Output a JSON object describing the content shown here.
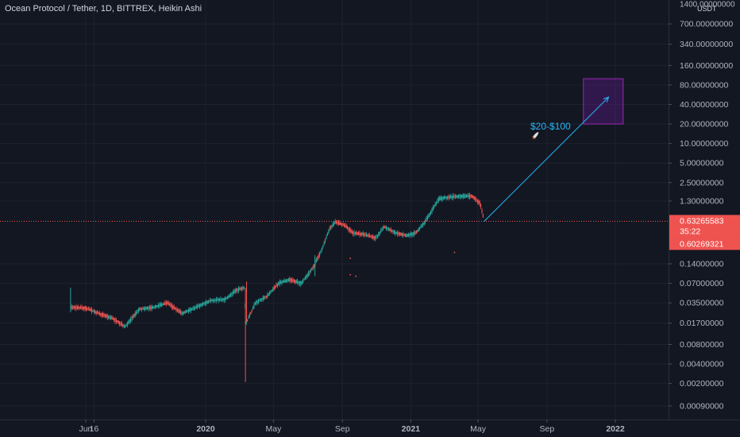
{
  "chart_data": {
    "type": "candlestick",
    "title": "Ocean Protocol / Tether, 1D, BITTREX, Heikin Ashi",
    "y_unit": "USDT",
    "y_scale": "log",
    "y_tick_labels": [
      "1400.00000000",
      "700.00000000",
      "340.00000000",
      "160.00000000",
      "80.00000000",
      "40.00000000",
      "20.00000000",
      "10.00000000",
      "5.00000000",
      "2.50000000",
      "1.30000000",
      "0.14000000",
      "0.07000000",
      "0.03500000",
      "0.01700000",
      "0.00800000",
      "0.00400000",
      "0.00200000",
      "0.00090000"
    ],
    "x_tick_labels": [
      "Jun",
      "16",
      "2020",
      "May",
      "Sep",
      "2021",
      "May",
      "Sep",
      "2022"
    ],
    "last_price": "0.63265583",
    "countdown": "35:22",
    "price_low_label": "0.60269321",
    "annotation": "$20-$100",
    "projection_target_range": [
      20,
      100
    ],
    "price_path": [
      [
        "2019-05-05",
        0.03
      ],
      [
        "2019-06-01",
        0.029
      ],
      [
        "2019-06-20",
        0.025
      ],
      [
        "2019-07-20",
        0.02
      ],
      [
        "2019-08-10",
        0.015
      ],
      [
        "2019-09-05",
        0.028
      ],
      [
        "2019-10-01",
        0.03
      ],
      [
        "2019-10-25",
        0.035
      ],
      [
        "2019-11-20",
        0.024
      ],
      [
        "2019-12-15",
        0.03
      ],
      [
        "2020-01-10",
        0.038
      ],
      [
        "2020-02-05",
        0.04
      ],
      [
        "2020-02-25",
        0.055
      ],
      [
        "2020-03-10",
        0.06
      ],
      [
        "2020-03-13",
        0.017
      ],
      [
        "2020-03-30",
        0.035
      ],
      [
        "2020-04-20",
        0.045
      ],
      [
        "2020-05-10",
        0.07
      ],
      [
        "2020-05-30",
        0.08
      ],
      [
        "2020-06-20",
        0.07
      ],
      [
        "2020-07-10",
        0.12
      ],
      [
        "2020-07-25",
        0.22
      ],
      [
        "2020-08-10",
        0.5
      ],
      [
        "2020-08-20",
        0.62
      ],
      [
        "2020-09-05",
        0.55
      ],
      [
        "2020-09-20",
        0.42
      ],
      [
        "2020-10-10",
        0.4
      ],
      [
        "2020-10-30",
        0.35
      ],
      [
        "2020-11-15",
        0.52
      ],
      [
        "2020-12-05",
        0.42
      ],
      [
        "2020-12-25",
        0.38
      ],
      [
        "2021-01-10",
        0.42
      ],
      [
        "2021-01-25",
        0.6
      ],
      [
        "2021-02-10",
        1.0
      ],
      [
        "2021-02-20",
        1.4
      ],
      [
        "2021-03-10",
        1.5
      ],
      [
        "2021-04-01",
        1.55
      ],
      [
        "2021-04-20",
        1.55
      ],
      [
        "2021-05-05",
        1.2
      ],
      [
        "2021-05-12",
        0.633
      ]
    ]
  }
}
